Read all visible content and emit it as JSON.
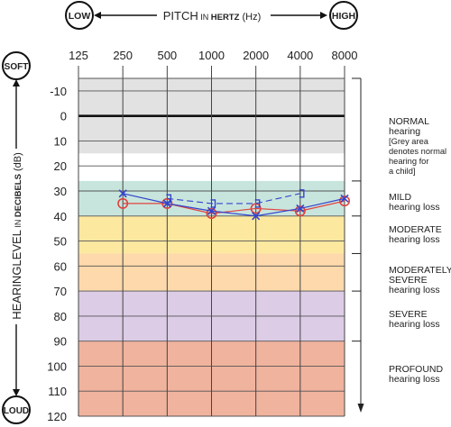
{
  "chart_data": {
    "type": "scatter",
    "title": {
      "prefix": "PITCH",
      "in_small": "IN",
      "unit_bold": "HERTZ",
      "unit_paren": "(Hz)"
    },
    "top_left_badge": "LOW",
    "top_right_badge": "HIGH",
    "left_top_badge": "SOFT",
    "left_bottom_badge": "LOUD",
    "ylabel": {
      "main": "HEARINGLEVEL",
      "in_small": "IN",
      "unit_bold": "DECIBELS",
      "unit_paren": "(dB)"
    },
    "x_categories": [
      "125",
      "250",
      "500",
      "1000",
      "2000",
      "4000",
      "8000"
    ],
    "y_ticks": [
      "-10",
      "0",
      "10",
      "20",
      "30",
      "40",
      "50",
      "60",
      "70",
      "80",
      "90",
      "100",
      "110",
      "120"
    ],
    "ylim": [
      -15,
      120
    ],
    "bands": [
      {
        "from": -15,
        "to": 15,
        "color": "#e2e2e3"
      },
      {
        "from": 15,
        "to": 26,
        "color": "#ffffff"
      },
      {
        "from": 26,
        "to": 40,
        "color": "#c8e5dd"
      },
      {
        "from": 40,
        "to": 55,
        "color": "#fde8a0"
      },
      {
        "from": 55,
        "to": 70,
        "color": "#fdd9ac"
      },
      {
        "from": 70,
        "to": 90,
        "color": "#dccce6"
      },
      {
        "from": 90,
        "to": 120,
        "color": "#f0b39e"
      }
    ],
    "series": [
      {
        "marker": "circle",
        "color": "#e0423e",
        "points": [
          [
            250,
            35
          ],
          [
            500,
            35
          ],
          [
            1000,
            39
          ],
          [
            2000,
            37
          ],
          [
            4000,
            38
          ],
          [
            8000,
            34
          ]
        ]
      },
      {
        "marker": "x",
        "color": "#3344cc",
        "points": [
          [
            250,
            31
          ],
          [
            500,
            35
          ],
          [
            1000,
            38
          ],
          [
            2000,
            40
          ],
          [
            4000,
            37
          ],
          [
            8000,
            33
          ]
        ]
      },
      {
        "marker": "bracket",
        "color": "#3344cc",
        "points": [
          [
            500,
            33
          ],
          [
            1000,
            35
          ],
          [
            2000,
            35
          ],
          [
            4000,
            31
          ]
        ]
      }
    ],
    "legend_bands": [
      {
        "title": "NORMAL",
        "lines": [
          "hearing",
          "[Grey area",
          "denotes normal",
          "hearing for",
          "a child]"
        ]
      },
      {
        "title": "MILD",
        "lines": [
          "hearing loss"
        ]
      },
      {
        "title": "MODERATE",
        "lines": [
          "hearing loss"
        ]
      },
      {
        "title": "MODERATELY",
        "lines": [
          "SEVERE",
          "hearing loss"
        ]
      },
      {
        "title": "SEVERE",
        "lines": [
          "hearing loss"
        ]
      },
      {
        "title": "PROFOUND",
        "lines": [
          "hearing loss"
        ]
      }
    ]
  }
}
